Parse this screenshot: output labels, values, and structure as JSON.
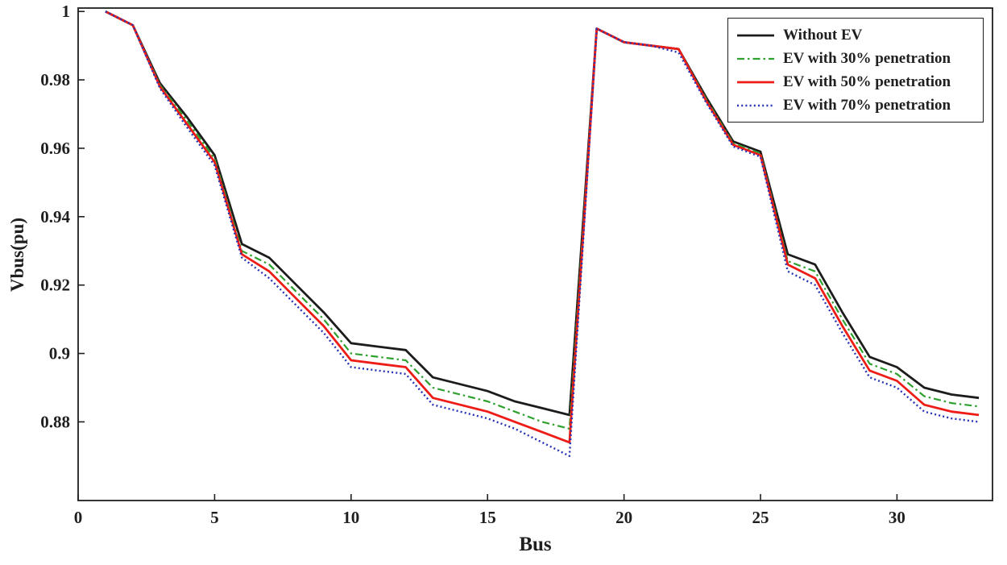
{
  "figure": {
    "xlabel": "Bus",
    "ylabel": "Vbus(pu)"
  },
  "colors": {
    "axis": "#1f1f1f",
    "background": "#ffffff",
    "without_ev": "#1c1c1c",
    "ev_30": "#2fa12f",
    "ev_50": "#ed1c16",
    "ev_70": "#2733b4"
  },
  "chart_data": {
    "type": "line",
    "title": "",
    "xlabel": "Bus",
    "ylabel": "Vbus(pu)",
    "xlim": [
      0,
      33.5
    ],
    "ylim": [
      0.857,
      1.001
    ],
    "xticks": [
      0,
      5,
      10,
      15,
      20,
      25,
      30
    ],
    "xtick_labels": [
      "0",
      "5",
      "10",
      "15",
      "20",
      "25",
      "30"
    ],
    "yticks": [
      0.88,
      0.9,
      0.92,
      0.94,
      0.96,
      0.98,
      1
    ],
    "ytick_labels": [
      "0.88",
      "0.9",
      "0.92",
      "0.94",
      "0.96",
      "0.98",
      "1"
    ],
    "grid": false,
    "legend_position": "top-right",
    "x": [
      1,
      2,
      3,
      4,
      5,
      6,
      7,
      8,
      9,
      10,
      11,
      12,
      13,
      14,
      15,
      16,
      17,
      18,
      19,
      20,
      21,
      22,
      23,
      24,
      25,
      26,
      27,
      28,
      29,
      30,
      31,
      32,
      33
    ],
    "series": [
      {
        "name": "Without EV",
        "color": "#1c1c1c",
        "style": "solid",
        "width": 2.8,
        "values": [
          1.0,
          0.996,
          0.979,
          0.969,
          0.958,
          0.932,
          0.928,
          0.92,
          0.912,
          0.903,
          0.902,
          0.901,
          0.893,
          0.891,
          0.889,
          0.886,
          0.884,
          0.882,
          0.995,
          0.991,
          0.99,
          0.989,
          0.975,
          0.962,
          0.959,
          0.929,
          0.926,
          0.912,
          0.899,
          0.896,
          0.89,
          0.888,
          0.887
        ]
      },
      {
        "name": "EV with 30% penetration",
        "color": "#2fa12f",
        "style": "dashdot",
        "width": 2.2,
        "values": [
          1.0,
          0.996,
          0.9785,
          0.968,
          0.957,
          0.93,
          0.926,
          0.918,
          0.91,
          0.9,
          0.899,
          0.898,
          0.89,
          0.888,
          0.886,
          0.883,
          0.88,
          0.878,
          0.995,
          0.991,
          0.99,
          0.989,
          0.9745,
          0.9615,
          0.9585,
          0.927,
          0.924,
          0.91,
          0.897,
          0.894,
          0.8875,
          0.8855,
          0.8845
        ]
      },
      {
        "name": "EV with 50% penetration",
        "color": "#ed1c16",
        "style": "solid",
        "width": 2.8,
        "values": [
          1.0,
          0.996,
          0.978,
          0.967,
          0.956,
          0.929,
          0.924,
          0.916,
          0.908,
          0.898,
          0.897,
          0.896,
          0.887,
          0.885,
          0.883,
          0.88,
          0.877,
          0.874,
          0.995,
          0.991,
          0.99,
          0.989,
          0.974,
          0.961,
          0.958,
          0.926,
          0.922,
          0.908,
          0.895,
          0.892,
          0.885,
          0.883,
          0.882
        ]
      },
      {
        "name": "EV with 70% penetration",
        "color": "#2733b4",
        "style": "dotted",
        "width": 2.4,
        "values": [
          1.0,
          0.996,
          0.9775,
          0.966,
          0.955,
          0.928,
          0.922,
          0.914,
          0.906,
          0.896,
          0.895,
          0.894,
          0.885,
          0.883,
          0.881,
          0.878,
          0.874,
          0.87,
          0.995,
          0.991,
          0.99,
          0.988,
          0.9735,
          0.9605,
          0.9575,
          0.924,
          0.92,
          0.906,
          0.893,
          0.89,
          0.883,
          0.881,
          0.88
        ]
      }
    ]
  }
}
